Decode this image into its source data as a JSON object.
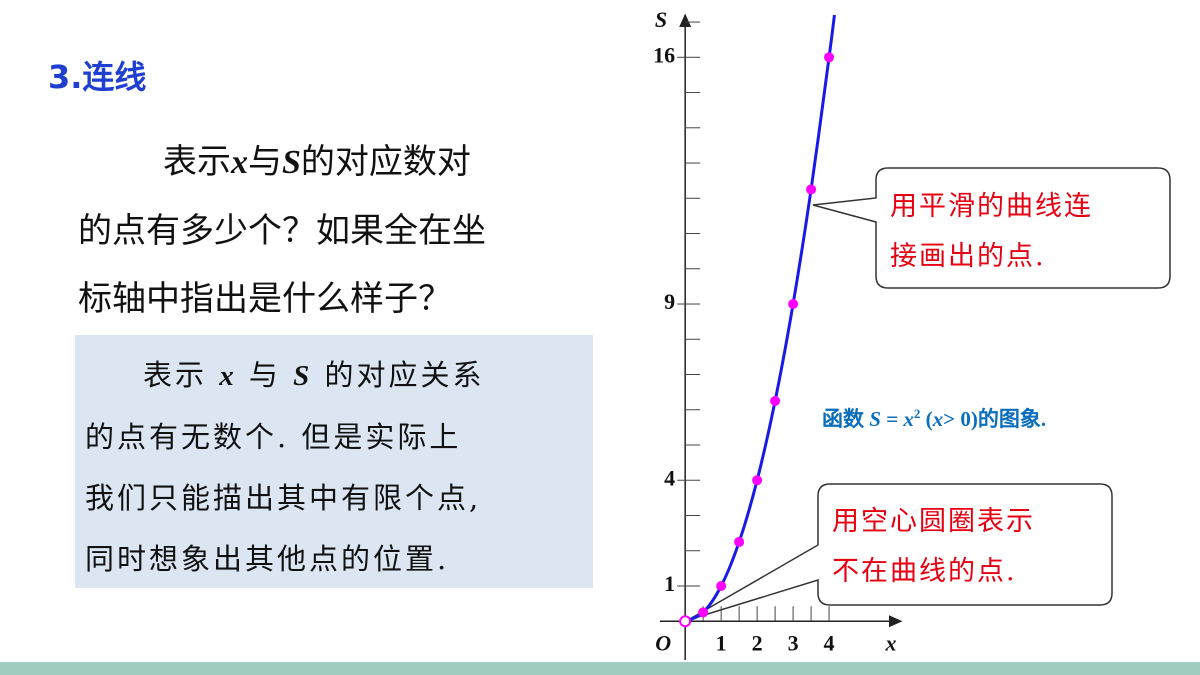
{
  "heading": "3.连线",
  "question": {
    "lines": [
      [
        "表示",
        "x",
        "与",
        "S",
        "的对应数对"
      ],
      "的点有多少个？如果全在坐",
      "标轴中指出是什么样子？"
    ]
  },
  "answer": {
    "lines": [
      [
        "表示 ",
        "x",
        " 与 ",
        "S",
        " 的对应关系"
      ],
      "的点有无数个. 但是实际上",
      "我们只能描出其中有限个点,",
      "同时想象出其他点的位置."
    ]
  },
  "callouts": [
    {
      "lines": [
        "用平滑的曲线连",
        "接画出的点."
      ]
    },
    {
      "lines": [
        "用空心圆圈表示",
        "不在曲线的点."
      ]
    }
  ],
  "chart_data": {
    "type": "line",
    "caption": [
      "函数 ",
      "S",
      " = ",
      "x",
      "2",
      " (",
      "x",
      "> 0)的图象."
    ],
    "y_axis_label": "S",
    "x_axis_label": "x",
    "origin_label": "O",
    "xlim": [
      -0.7,
      6
    ],
    "ylim": [
      -1.1,
      17.2
    ],
    "xticks": [
      1,
      2,
      3,
      4
    ],
    "yticks": [
      1,
      4,
      9,
      16
    ],
    "x_minor_ticks": [
      0.5,
      1,
      1.5,
      2,
      2.5,
      3,
      3.5,
      4
    ],
    "y_minor_ticks": [
      1,
      2,
      3,
      4,
      5,
      6,
      7,
      8,
      9,
      10,
      11,
      12,
      13,
      14,
      15,
      16,
      17
    ],
    "series": [
      {
        "color": "#1a1ae6",
        "x": [
          0,
          0.5,
          1,
          1.5,
          2,
          2.5,
          3,
          3.5,
          4,
          4.15
        ],
        "values": [
          0,
          0.25,
          1,
          2.25,
          4,
          6.25,
          9,
          12.25,
          16,
          17.2
        ]
      },
      {
        "color": "#ff00ff",
        "x": [
          0.5,
          1,
          1.5,
          2,
          2.5,
          3,
          3.5,
          4
        ],
        "values": [
          0.25,
          1,
          2.25,
          4,
          6.25,
          9,
          12.25,
          16
        ]
      }
    ],
    "open_points": {
      "color": "#ff00ff",
      "x": [
        0
      ],
      "values": [
        0
      ]
    }
  }
}
